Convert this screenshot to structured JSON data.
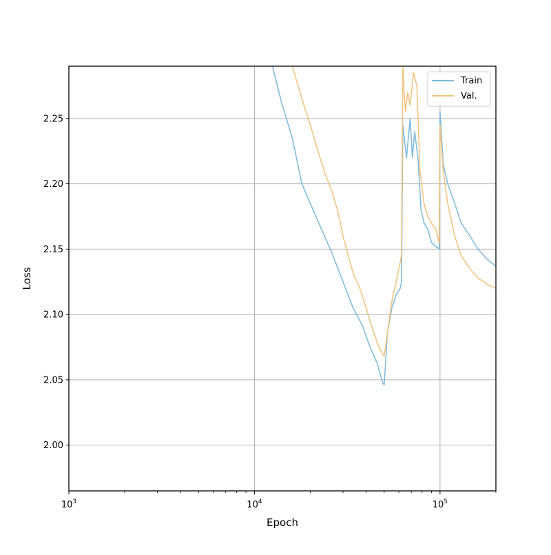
{
  "chart_data": {
    "type": "line",
    "title": "",
    "xlabel": "Epoch",
    "ylabel": "Loss",
    "xscale": "log",
    "xlim": [
      1000,
      200000
    ],
    "ylim": [
      1.965,
      2.29
    ],
    "grid": true,
    "legend_position": "top-right",
    "x_major_ticks": [
      {
        "value": 1000,
        "base": "10",
        "exp": "3"
      },
      {
        "value": 10000,
        "base": "10",
        "exp": "4"
      },
      {
        "value": 100000,
        "base": "10",
        "exp": "5"
      }
    ],
    "y_ticks": [
      {
        "value": 2.0,
        "label": "2.00"
      },
      {
        "value": 2.05,
        "label": "2.05"
      },
      {
        "value": 2.1,
        "label": "2.10"
      },
      {
        "value": 2.15,
        "label": "2.15"
      },
      {
        "value": 2.2,
        "label": "2.20"
      },
      {
        "value": 2.25,
        "label": "2.25"
      }
    ],
    "series": [
      {
        "name": "Train",
        "color": "#7ab8d9",
        "points": [
          [
            12500,
            2.29
          ],
          [
            14000,
            2.262
          ],
          [
            16000,
            2.235
          ],
          [
            18000,
            2.2
          ],
          [
            20000,
            2.185
          ],
          [
            23000,
            2.165
          ],
          [
            26000,
            2.148
          ],
          [
            30000,
            2.125
          ],
          [
            34000,
            2.105
          ],
          [
            38000,
            2.092
          ],
          [
            42000,
            2.075
          ],
          [
            46000,
            2.062
          ],
          [
            49000,
            2.048
          ],
          [
            50000,
            2.046
          ],
          [
            51000,
            2.065
          ],
          [
            52000,
            2.085
          ],
          [
            55000,
            2.105
          ],
          [
            58000,
            2.115
          ],
          [
            61000,
            2.12
          ],
          [
            62000,
            2.125
          ],
          [
            63000,
            2.245
          ],
          [
            66000,
            2.22
          ],
          [
            69000,
            2.25
          ],
          [
            71000,
            2.22
          ],
          [
            73000,
            2.24
          ],
          [
            76000,
            2.22
          ],
          [
            79000,
            2.18
          ],
          [
            82000,
            2.17
          ],
          [
            86000,
            2.165
          ],
          [
            90000,
            2.155
          ],
          [
            95000,
            2.152
          ],
          [
            99000,
            2.15
          ],
          [
            100000,
            2.255
          ],
          [
            104000,
            2.215
          ],
          [
            110000,
            2.2
          ],
          [
            120000,
            2.185
          ],
          [
            130000,
            2.17
          ],
          [
            145000,
            2.16
          ],
          [
            160000,
            2.15
          ],
          [
            180000,
            2.142
          ],
          [
            200000,
            2.137
          ]
        ]
      },
      {
        "name": "Val.",
        "color": "#f0c27a",
        "points": [
          [
            16000,
            2.29
          ],
          [
            18000,
            2.265
          ],
          [
            20000,
            2.245
          ],
          [
            22000,
            2.225
          ],
          [
            24000,
            2.208
          ],
          [
            26000,
            2.195
          ],
          [
            28000,
            2.18
          ],
          [
            30000,
            2.16
          ],
          [
            32000,
            2.145
          ],
          [
            34000,
            2.132
          ],
          [
            37000,
            2.12
          ],
          [
            40000,
            2.105
          ],
          [
            43000,
            2.09
          ],
          [
            46000,
            2.078
          ],
          [
            48000,
            2.072
          ],
          [
            50000,
            2.068
          ],
          [
            52000,
            2.085
          ],
          [
            55000,
            2.11
          ],
          [
            58000,
            2.125
          ],
          [
            61000,
            2.14
          ],
          [
            62000,
            2.145
          ],
          [
            63000,
            2.29
          ],
          [
            65000,
            2.255
          ],
          [
            67000,
            2.27
          ],
          [
            69000,
            2.26
          ],
          [
            72000,
            2.285
          ],
          [
            75000,
            2.275
          ],
          [
            78000,
            2.21
          ],
          [
            82000,
            2.185
          ],
          [
            86000,
            2.175
          ],
          [
            90000,
            2.17
          ],
          [
            95000,
            2.165
          ],
          [
            99000,
            2.155
          ],
          [
            100000,
            2.245
          ],
          [
            104000,
            2.21
          ],
          [
            110000,
            2.185
          ],
          [
            120000,
            2.16
          ],
          [
            130000,
            2.145
          ],
          [
            145000,
            2.135
          ],
          [
            160000,
            2.128
          ],
          [
            180000,
            2.123
          ],
          [
            200000,
            2.12
          ]
        ]
      }
    ]
  }
}
